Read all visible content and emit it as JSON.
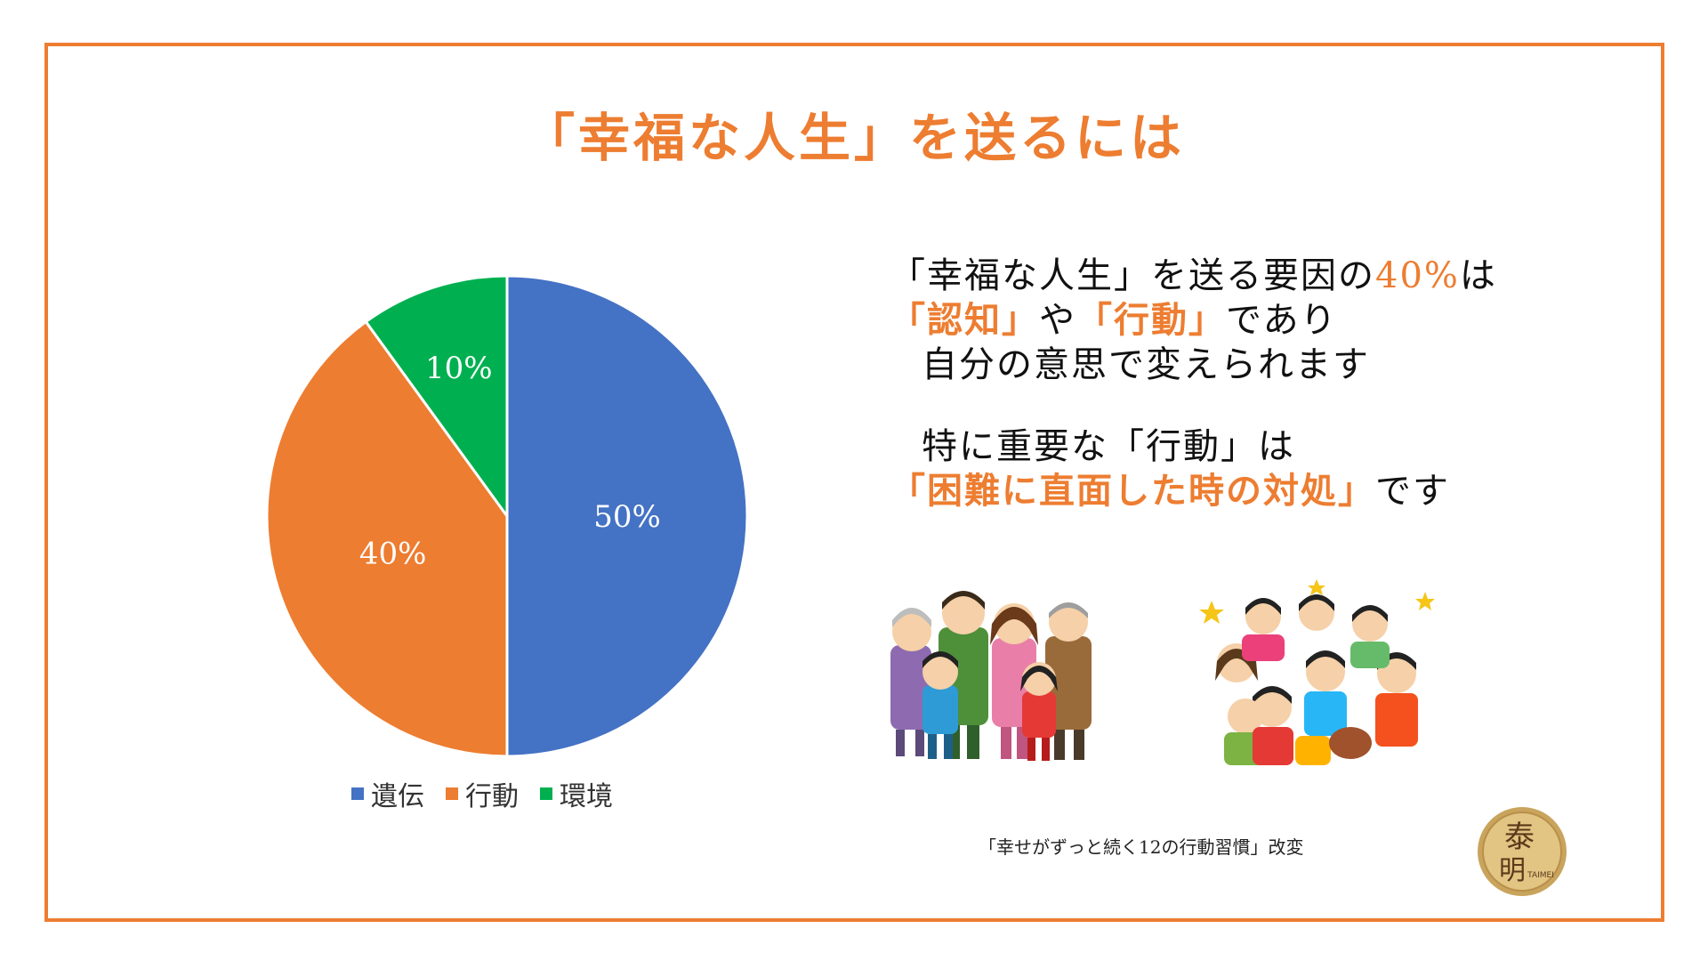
{
  "title": "「幸福な人生」を送るには",
  "chart_data": {
    "type": "pie",
    "start": "12 o'clock, clockwise",
    "series": [
      {
        "name": "遺伝",
        "value": 50,
        "label": "50%",
        "color": "#4472C4"
      },
      {
        "name": "行動",
        "value": 40,
        "label": "40%",
        "color": "#ED7D31"
      },
      {
        "name": "環境",
        "value": 10,
        "label": "10%",
        "color": "#00B050"
      }
    ],
    "legend_position": "bottom"
  },
  "text": {
    "p1_a": "「幸福な人生」を送る要因の",
    "p1_b": "40%",
    "p1_c": "は",
    "p2_a": "「認知」",
    "p2_b": "や",
    "p2_c": "「行動」",
    "p2_d": "であり",
    "p3": "自分の意思で変えられます",
    "p4": "特に重要な「行動」は",
    "p5_a": "「困難に直面した時の対処」",
    "p5_b": "です"
  },
  "source": "「幸せがずっと続く12の行動習慣」改変",
  "seal": {
    "char_top": "泰",
    "char_bottom": "明",
    "small": "TAIMEI"
  },
  "illustrations": [
    "family-illustration",
    "children-cheering-illustration"
  ]
}
